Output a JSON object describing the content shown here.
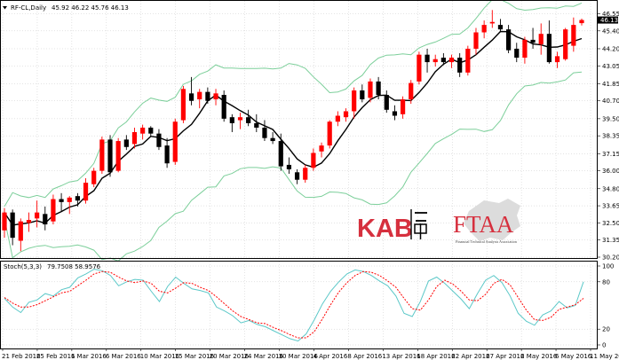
{
  "chart_data": [
    {
      "type": "candlestick",
      "title": "RF-CL,Daily",
      "ohlc_header": "45.92 46.22 45.76 46.13",
      "last_price": "46.13",
      "ylim": [
        30.2,
        46.7
      ],
      "y_ticks": [
        "46.55",
        "45.40",
        "44.20",
        "43.05",
        "41.85",
        "40.70",
        "39.50",
        "38.35",
        "37.15",
        "36.00",
        "34.80",
        "33.65",
        "32.50",
        "31.35",
        "30.20"
      ],
      "x_ticks": [
        "21 Feb 2016",
        "25 Feb 2016",
        "1 Mar 2016",
        "6 Mar 2016",
        "10 Mar 2016",
        "15 Mar 2016",
        "20 Mar 2016",
        "24 Mar 2016",
        "30 Mar 2016",
        "4 Apr 2016",
        "8 Apr 2016",
        "13 Apr 2016",
        "18 Apr 2016",
        "22 Apr 2016",
        "27 Apr 2016",
        "2 May 2016",
        "6 May 2016",
        "11 May 2016"
      ],
      "candles": [
        {
          "o": 32.0,
          "h": 33.5,
          "l": 31.5,
          "c": 33.2
        },
        {
          "o": 33.2,
          "h": 33.4,
          "l": 31.0,
          "c": 31.5
        },
        {
          "o": 31.3,
          "h": 32.8,
          "l": 30.6,
          "c": 32.6
        },
        {
          "o": 32.5,
          "h": 33.2,
          "l": 31.9,
          "c": 32.7
        },
        {
          "o": 32.8,
          "h": 34.0,
          "l": 32.2,
          "c": 33.2
        },
        {
          "o": 33.1,
          "h": 33.6,
          "l": 32.0,
          "c": 32.4
        },
        {
          "o": 32.6,
          "h": 34.4,
          "l": 32.4,
          "c": 34.1
        },
        {
          "o": 34.1,
          "h": 34.5,
          "l": 33.3,
          "c": 33.9
        },
        {
          "o": 33.9,
          "h": 34.3,
          "l": 33.1,
          "c": 34.2
        },
        {
          "o": 34.3,
          "h": 34.5,
          "l": 33.6,
          "c": 34.0
        },
        {
          "o": 34.0,
          "h": 35.5,
          "l": 33.8,
          "c": 35.2
        },
        {
          "o": 35.1,
          "h": 36.2,
          "l": 34.9,
          "c": 36.0
        },
        {
          "o": 36.0,
          "h": 38.3,
          "l": 35.8,
          "c": 38.1
        },
        {
          "o": 38.1,
          "h": 38.4,
          "l": 35.6,
          "c": 35.9
        },
        {
          "o": 36.0,
          "h": 38.2,
          "l": 35.9,
          "c": 38.0
        },
        {
          "o": 38.1,
          "h": 38.4,
          "l": 37.4,
          "c": 37.6
        },
        {
          "o": 37.8,
          "h": 38.9,
          "l": 37.5,
          "c": 38.6
        },
        {
          "o": 38.5,
          "h": 39.1,
          "l": 38.1,
          "c": 38.9
        },
        {
          "o": 38.9,
          "h": 39.0,
          "l": 38.3,
          "c": 38.5
        },
        {
          "o": 38.5,
          "h": 38.8,
          "l": 37.4,
          "c": 37.6
        },
        {
          "o": 37.7,
          "h": 38.2,
          "l": 36.2,
          "c": 36.5
        },
        {
          "o": 36.6,
          "h": 39.5,
          "l": 36.4,
          "c": 39.3
        },
        {
          "o": 39.4,
          "h": 41.7,
          "l": 39.2,
          "c": 41.5
        },
        {
          "o": 41.2,
          "h": 42.3,
          "l": 40.4,
          "c": 40.7
        },
        {
          "o": 40.8,
          "h": 41.5,
          "l": 40.2,
          "c": 41.3
        },
        {
          "o": 41.3,
          "h": 41.6,
          "l": 40.5,
          "c": 40.7
        },
        {
          "o": 40.8,
          "h": 41.5,
          "l": 40.4,
          "c": 41.2
        },
        {
          "o": 41.1,
          "h": 41.4,
          "l": 39.3,
          "c": 39.5
        },
        {
          "o": 39.6,
          "h": 39.8,
          "l": 38.6,
          "c": 39.2
        },
        {
          "o": 39.4,
          "h": 39.9,
          "l": 38.8,
          "c": 39.6
        },
        {
          "o": 39.6,
          "h": 40.1,
          "l": 39.0,
          "c": 39.2
        },
        {
          "o": 39.2,
          "h": 39.8,
          "l": 38.6,
          "c": 38.9
        },
        {
          "o": 38.9,
          "h": 39.4,
          "l": 38.0,
          "c": 38.2
        },
        {
          "o": 38.2,
          "h": 38.6,
          "l": 37.8,
          "c": 38.0
        },
        {
          "o": 38.0,
          "h": 38.5,
          "l": 36.0,
          "c": 36.3
        },
        {
          "o": 36.4,
          "h": 36.9,
          "l": 35.8,
          "c": 36.1
        },
        {
          "o": 35.9,
          "h": 36.1,
          "l": 35.1,
          "c": 35.4
        },
        {
          "o": 35.4,
          "h": 36.4,
          "l": 35.2,
          "c": 36.2
        },
        {
          "o": 36.2,
          "h": 37.5,
          "l": 36.0,
          "c": 37.2
        },
        {
          "o": 37.3,
          "h": 37.9,
          "l": 36.9,
          "c": 37.7
        },
        {
          "o": 37.7,
          "h": 39.4,
          "l": 37.5,
          "c": 39.3
        },
        {
          "o": 39.3,
          "h": 40.0,
          "l": 39.0,
          "c": 39.7
        },
        {
          "o": 39.6,
          "h": 40.2,
          "l": 39.3,
          "c": 40.0
        },
        {
          "o": 40.0,
          "h": 41.6,
          "l": 39.5,
          "c": 41.4
        },
        {
          "o": 41.4,
          "h": 41.8,
          "l": 40.6,
          "c": 40.8
        },
        {
          "o": 40.9,
          "h": 42.2,
          "l": 40.6,
          "c": 42.0
        },
        {
          "o": 42.0,
          "h": 42.3,
          "l": 40.8,
          "c": 41.1
        },
        {
          "o": 41.1,
          "h": 41.4,
          "l": 39.9,
          "c": 40.1
        },
        {
          "o": 40.0,
          "h": 40.4,
          "l": 39.4,
          "c": 39.7
        },
        {
          "o": 39.8,
          "h": 41.0,
          "l": 39.5,
          "c": 40.8
        },
        {
          "o": 40.8,
          "h": 42.1,
          "l": 40.5,
          "c": 41.9
        },
        {
          "o": 42.0,
          "h": 44.0,
          "l": 41.8,
          "c": 43.8
        },
        {
          "o": 43.8,
          "h": 44.2,
          "l": 42.6,
          "c": 43.3
        },
        {
          "o": 43.3,
          "h": 43.8,
          "l": 43.0,
          "c": 43.5
        },
        {
          "o": 43.6,
          "h": 43.9,
          "l": 43.1,
          "c": 43.3
        },
        {
          "o": 43.3,
          "h": 43.8,
          "l": 42.9,
          "c": 43.6
        },
        {
          "o": 43.6,
          "h": 43.9,
          "l": 42.3,
          "c": 42.6
        },
        {
          "o": 42.6,
          "h": 44.4,
          "l": 42.4,
          "c": 44.2
        },
        {
          "o": 44.2,
          "h": 45.6,
          "l": 43.8,
          "c": 45.3
        },
        {
          "o": 45.3,
          "h": 46.1,
          "l": 44.9,
          "c": 45.8
        },
        {
          "o": 45.9,
          "h": 46.8,
          "l": 45.6,
          "c": 46.0
        },
        {
          "o": 45.8,
          "h": 46.2,
          "l": 45.3,
          "c": 45.5
        },
        {
          "o": 45.5,
          "h": 45.8,
          "l": 43.9,
          "c": 44.1
        },
        {
          "o": 44.2,
          "h": 44.6,
          "l": 43.3,
          "c": 43.6
        },
        {
          "o": 43.6,
          "h": 45.0,
          "l": 43.2,
          "c": 44.8
        },
        {
          "o": 44.8,
          "h": 45.6,
          "l": 44.2,
          "c": 44.6
        },
        {
          "o": 44.5,
          "h": 45.9,
          "l": 43.8,
          "c": 45.2
        },
        {
          "o": 45.2,
          "h": 46.1,
          "l": 43.2,
          "c": 43.3
        },
        {
          "o": 43.3,
          "h": 44.0,
          "l": 42.9,
          "c": 43.7
        },
        {
          "o": 43.5,
          "h": 45.6,
          "l": 43.4,
          "c": 45.5
        },
        {
          "o": 44.4,
          "h": 46.3,
          "l": 44.0,
          "c": 45.8
        },
        {
          "o": 45.92,
          "h": 46.22,
          "l": 45.76,
          "c": 46.13
        }
      ],
      "indicators": [
        "moving-average",
        "bollinger-bands"
      ],
      "colors": {
        "up": "#ff0000",
        "down": "#000000",
        "ma": "#000000",
        "bands": "#7ccf9a",
        "grid": "#c8c8c8"
      }
    },
    {
      "type": "line",
      "title": "Stoch(5,3,3)",
      "header_values": "79.7508 58.9576",
      "ylim": [
        0,
        100
      ],
      "y_ticks": [
        "100",
        "80",
        "20",
        "0"
      ],
      "series": [
        {
          "style": "solid",
          "color": "#5bc8c8",
          "values": [
            59,
            48,
            41,
            54,
            57,
            65,
            62,
            70,
            73,
            85,
            90,
            96,
            94,
            88,
            75,
            80,
            83,
            82,
            68,
            55,
            74,
            86,
            78,
            71,
            69,
            66,
            48,
            43,
            37,
            28,
            31,
            26,
            23,
            18,
            13,
            8,
            5,
            14,
            32,
            52,
            68,
            80,
            90,
            95,
            93,
            88,
            81,
            75,
            62,
            40,
            36,
            55,
            81,
            86,
            78,
            68,
            58,
            46,
            65,
            82,
            88,
            79,
            62,
            40,
            30,
            25,
            38,
            43,
            55,
            47,
            50,
            80
          ]
        },
        {
          "style": "dashed",
          "color": "#ff0000",
          "values": [
            60,
            53,
            48,
            48,
            51,
            56,
            61,
            66,
            68,
            75,
            82,
            90,
            93,
            92,
            86,
            81,
            79,
            81,
            78,
            68,
            66,
            72,
            79,
            78,
            73,
            69,
            61,
            52,
            43,
            36,
            32,
            28,
            27,
            22,
            18,
            13,
            9,
            9,
            17,
            33,
            51,
            67,
            79,
            88,
            93,
            92,
            88,
            81,
            73,
            59,
            46,
            44,
            57,
            74,
            82,
            77,
            68,
            57,
            56,
            64,
            78,
            83,
            76,
            60,
            44,
            32,
            31,
            35,
            45,
            48,
            51,
            59
          ]
        }
      ]
    }
  ],
  "watermark": {
    "left_logo": "KAB",
    "right_logo": "FTAA",
    "right_caption": "Financial Technical Analysts Association"
  }
}
